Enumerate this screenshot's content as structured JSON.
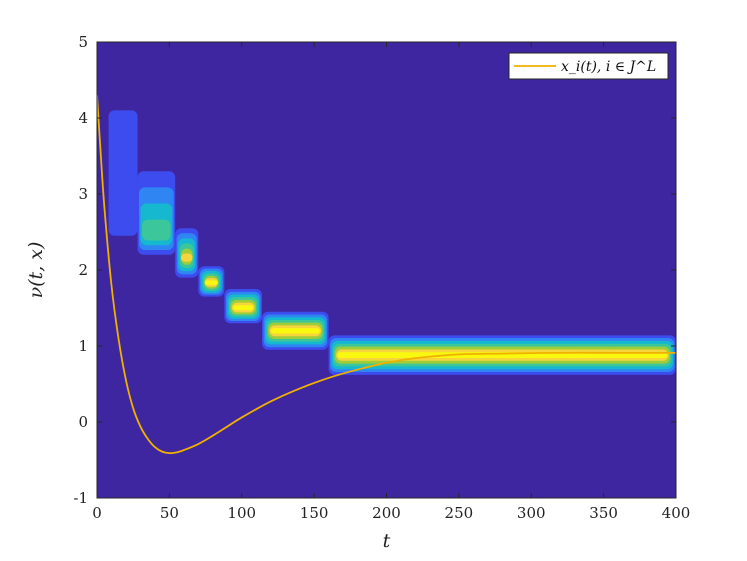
{
  "colors": {
    "background": "#3f26a1",
    "level_1": "#3d4cee",
    "level_2": "#2f86f3",
    "level_3": "#15b8ce",
    "level_4": "#3bc79a",
    "level_5": "#9fcc3a",
    "level_6": "#f6d43b",
    "level_7": "#f9f90f",
    "trajectory": "#f0b000",
    "axis": "#262626"
  },
  "chart_data": {
    "type": "heatmap",
    "title": "",
    "xlabel": "t",
    "ylabel": "ν(t, x)",
    "xlim": [
      0,
      400
    ],
    "ylim": [
      -1,
      5
    ],
    "xticks": [
      "0",
      "50",
      "100",
      "150",
      "200",
      "250",
      "300",
      "350",
      "400"
    ],
    "yticks": [
      "-1",
      "0",
      "1",
      "2",
      "3",
      "4",
      "5"
    ],
    "grid": false,
    "legend_position": "top-right",
    "density_segments": [
      {
        "t_start": 8,
        "t_end": 28,
        "x_low": 2.45,
        "x_high": 4.1,
        "peak_x": 3.3,
        "peak_level": 1
      },
      {
        "t_start": 28,
        "t_end": 54,
        "x_low": 2.2,
        "x_high": 3.3,
        "peak_x": 2.45,
        "peak_level": 4
      },
      {
        "t_start": 54,
        "t_end": 70,
        "x_low": 1.9,
        "x_high": 2.55,
        "peak_x": 2.15,
        "peak_level": 6
      },
      {
        "t_start": 70,
        "t_end": 88,
        "x_low": 1.65,
        "x_high": 2.05,
        "peak_x": 1.83,
        "peak_level": 7
      },
      {
        "t_start": 88,
        "t_end": 114,
        "x_low": 1.3,
        "x_high": 1.75,
        "peak_x": 1.5,
        "peak_level": 7
      },
      {
        "t_start": 114,
        "t_end": 160,
        "x_low": 0.95,
        "x_high": 1.45,
        "peak_x": 1.2,
        "peak_level": 7
      },
      {
        "t_start": 160,
        "t_end": 400,
        "x_low": 0.62,
        "x_high": 1.14,
        "peak_x": 0.88,
        "peak_level": 7
      }
    ],
    "series": [
      {
        "name": "x_i(t),  i ∈ J^L",
        "type": "line",
        "x": [
          0,
          2,
          5,
          10,
          15,
          20,
          25,
          30,
          35,
          40,
          45,
          50,
          55,
          60,
          70,
          80,
          90,
          100,
          120,
          140,
          160,
          180,
          200,
          220,
          250,
          280,
          320,
          360,
          400
        ],
        "y": [
          4.3,
          3.7,
          2.85,
          1.8,
          1.08,
          0.55,
          0.18,
          -0.06,
          -0.22,
          -0.33,
          -0.39,
          -0.41,
          -0.4,
          -0.37,
          -0.29,
          -0.18,
          -0.06,
          0.06,
          0.27,
          0.44,
          0.58,
          0.69,
          0.78,
          0.84,
          0.89,
          0.9,
          0.91,
          0.91,
          0.91
        ]
      }
    ],
    "legend": [
      "x_i(t),  i ∈ J^L"
    ]
  }
}
